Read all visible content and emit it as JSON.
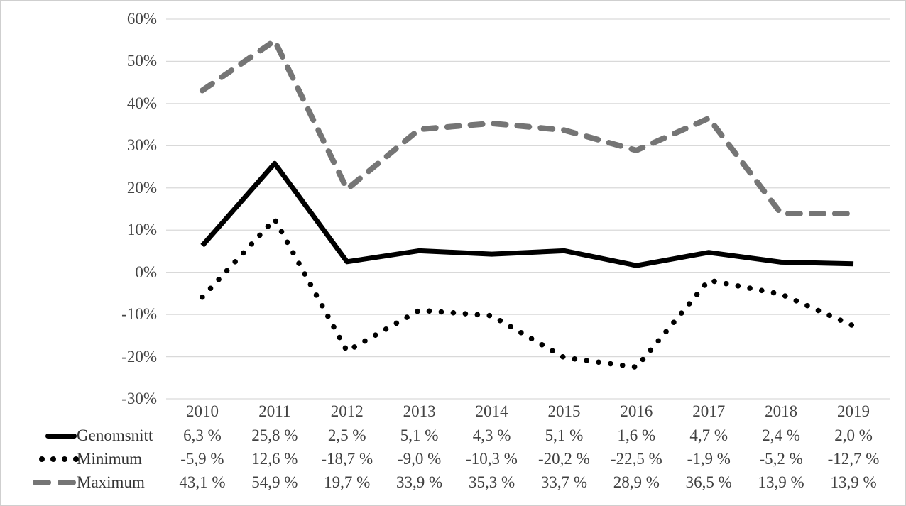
{
  "figure": {
    "background_color": "#ffffff",
    "border_color": "#cfcfcf",
    "text_color": "#404040",
    "gridline_color": "#d9d9d9"
  },
  "chart_data": {
    "type": "line",
    "title": "",
    "xlabel": "",
    "ylabel": "",
    "grid": true,
    "legend_position": "left-of-table-rows",
    "categories": [
      "2010",
      "2011",
      "2012",
      "2013",
      "2014",
      "2015",
      "2016",
      "2017",
      "2018",
      "2019"
    ],
    "y_axis": {
      "min": -30,
      "max": 60,
      "step": 10,
      "unit": "%",
      "tick_labels": [
        "60%",
        "50%",
        "40%",
        "30%",
        "20%",
        "10%",
        "0%",
        "-10%",
        "-20%",
        "-30%"
      ]
    },
    "series": [
      {
        "name": "Genomsnitt",
        "style": "solid",
        "color": "#000000",
        "values": [
          6.3,
          25.8,
          2.5,
          5.1,
          4.3,
          5.1,
          1.6,
          4.7,
          2.4,
          2.0
        ],
        "labels": [
          "6,3 %",
          "25,8 %",
          "2,5 %",
          "5,1 %",
          "4,3 %",
          "5,1 %",
          "1,6 %",
          "4,7 %",
          "2,4 %",
          "2,0 %"
        ]
      },
      {
        "name": "Minimum",
        "style": "dotted",
        "color": "#000000",
        "values": [
          -5.9,
          12.6,
          -18.7,
          -9.0,
          -10.3,
          -20.2,
          -22.5,
          -1.9,
          -5.2,
          -12.7
        ],
        "labels": [
          "-5,9 %",
          "12,6 %",
          "-18,7 %",
          "-9,0 %",
          "-10,3 %",
          "-20,2 %",
          "-22,5 %",
          "-1,9 %",
          "-5,2 %",
          "-12,7 %"
        ]
      },
      {
        "name": "Maximum",
        "style": "dashed",
        "color": "#757575",
        "values": [
          43.1,
          54.9,
          19.7,
          33.9,
          35.3,
          33.7,
          28.9,
          36.5,
          13.9,
          13.9
        ],
        "labels": [
          "43,1 %",
          "54,9 %",
          "19,7 %",
          "33,9 %",
          "35,3 %",
          "33,7 %",
          "28,9 %",
          "36,5 %",
          "13,9 %",
          "13,9 %"
        ]
      }
    ]
  }
}
